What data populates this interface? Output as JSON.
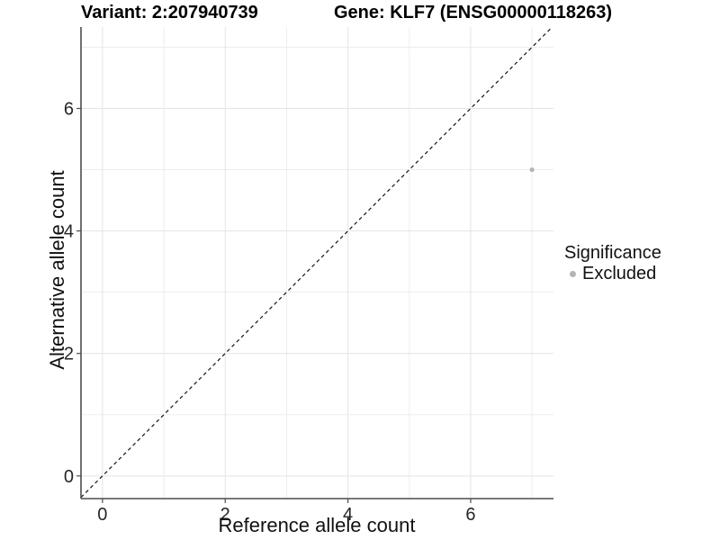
{
  "header": {
    "variant_title": "Variant: 2:207940739",
    "gene_title": "Gene: KLF7 (ENSG00000118263)"
  },
  "chart_data": {
    "type": "scatter",
    "title": "Variant: 2:207940739   Gene: KLF7 (ENSG00000118263)",
    "xlabel": "Reference allele count",
    "ylabel": "Alternative allele count",
    "xlim": [
      -0.35,
      7.35
    ],
    "ylim": [
      -0.37,
      7.33
    ],
    "xticks": [
      0,
      2,
      4,
      6
    ],
    "yticks": [
      0,
      2,
      4,
      6
    ],
    "grid_major": [
      0,
      2,
      4,
      6
    ],
    "grid_minor": [
      1,
      3,
      5,
      7
    ],
    "grid": true,
    "background": "#ffffff",
    "series": [
      {
        "name": "Excluded",
        "color": "#b5b5b5",
        "points": [
          {
            "x": 7,
            "y": 5
          }
        ]
      }
    ],
    "reference_line": {
      "description": "identity line y = x",
      "style": "dashed",
      "color": "#141414"
    },
    "legend": {
      "title": "Significance",
      "position": "right",
      "entries": [
        {
          "label": "Excluded",
          "color": "#b5b5b5"
        }
      ]
    }
  }
}
